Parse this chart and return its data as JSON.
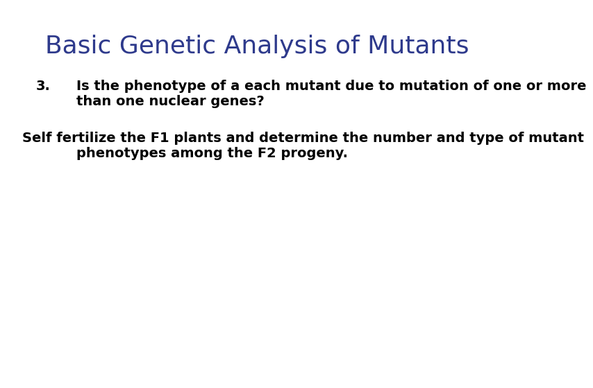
{
  "title": "Basic Genetic Analysis of Mutants",
  "title_color": "#2E3A8C",
  "title_fontsize": 26,
  "background_color": "#FFFFFF",
  "item_number": "3.",
  "item_text_line1": "Is the phenotype of a each mutant due to mutation of one or more",
  "item_text_line2": "than one nuclear genes?",
  "body_line1": "Self fertilize the F1 plants and determine the number and type of mutant",
  "body_line2": "phenotypes among the F2 progeny.",
  "text_color": "#000000",
  "text_fontsize": 14,
  "title_font": "DejaVu Sans",
  "body_font": "DejaVu Sans"
}
